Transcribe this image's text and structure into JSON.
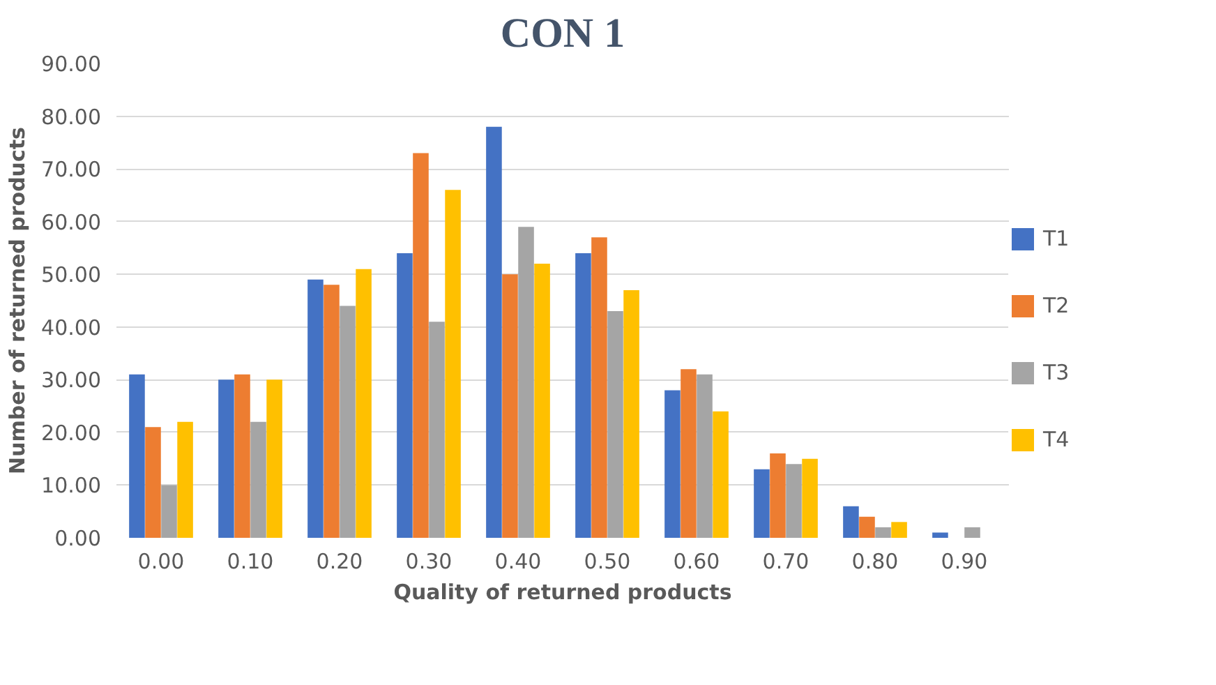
{
  "chart_data": {
    "type": "bar",
    "title": "CON 1",
    "xlabel": "Quality of returned products",
    "ylabel": "Number of returned products",
    "categories": [
      "0.00",
      "0.10",
      "0.20",
      "0.30",
      "0.40",
      "0.50",
      "0.60",
      "0.70",
      "0.80",
      "0.90"
    ],
    "series": [
      {
        "name": "T1",
        "color": "#4472c4",
        "values": [
          31,
          30,
          49,
          54,
          78,
          54,
          28,
          13,
          6,
          1
        ]
      },
      {
        "name": "T2",
        "color": "#ed7d31",
        "values": [
          21,
          31,
          48,
          73,
          50,
          57,
          32,
          16,
          4,
          0
        ]
      },
      {
        "name": "T3",
        "color": "#a5a5a5",
        "values": [
          10,
          22,
          44,
          41,
          59,
          43,
          31,
          14,
          2,
          2
        ]
      },
      {
        "name": "T4",
        "color": "#ffc000",
        "values": [
          22,
          30,
          51,
          66,
          52,
          47,
          24,
          15,
          3,
          0
        ]
      }
    ],
    "ylim": [
      0,
      90
    ],
    "yticks": [
      {
        "value": 0,
        "label": "0.00"
      },
      {
        "value": 10,
        "label": "10.00"
      },
      {
        "value": 20,
        "label": "20.00"
      },
      {
        "value": 30,
        "label": "30.00"
      },
      {
        "value": 40,
        "label": "40.00"
      },
      {
        "value": 50,
        "label": "50.00"
      },
      {
        "value": 60,
        "label": "60.00"
      },
      {
        "value": 70,
        "label": "70.00"
      },
      {
        "value": 80,
        "label": "80.00"
      },
      {
        "value": 90,
        "label": "90.00"
      }
    ],
    "grid": "y",
    "legend": "right"
  }
}
